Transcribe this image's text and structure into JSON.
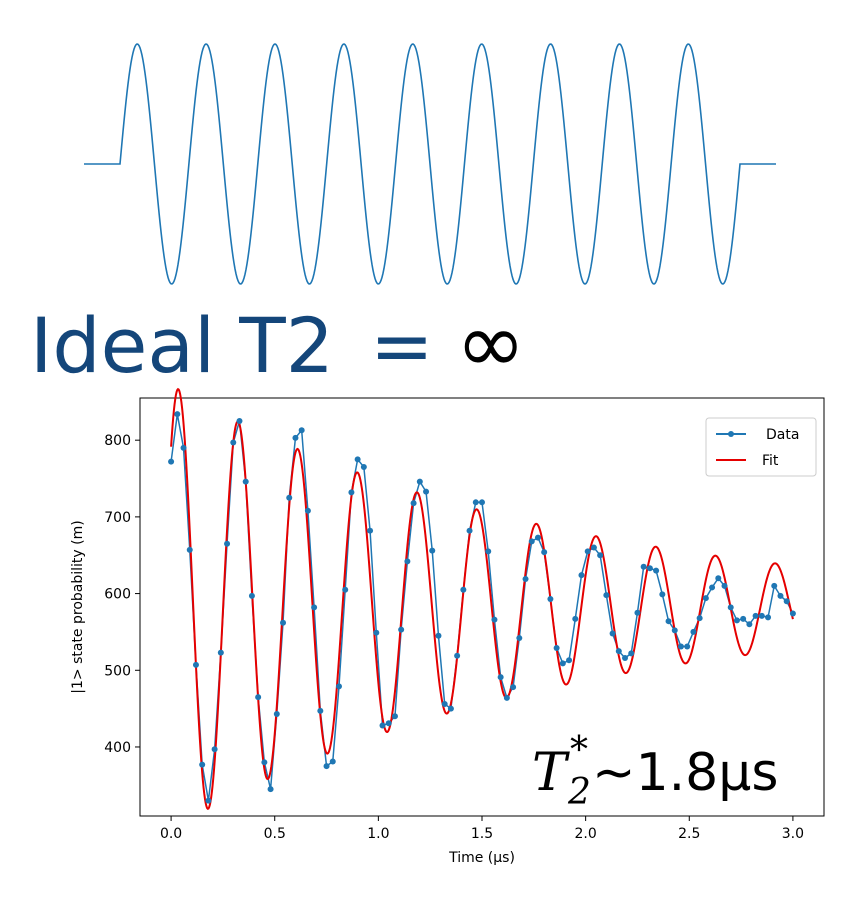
{
  "headline": {
    "ideal_text": "Ideal T2",
    "equals": "=",
    "infinity": "∞"
  },
  "ideal_wave": {
    "cycles": 9,
    "color": "#1f77b4"
  },
  "annotation": {
    "symbol": "T",
    "subscript": "2",
    "superscript": "*",
    "value": "~1.8μs"
  },
  "chart_data": {
    "type": "scatter",
    "xlabel": "Time (μs)",
    "ylabel": "|1> state probability (m)",
    "xlim": [
      -0.15,
      3.15
    ],
    "ylim": [
      310,
      855
    ],
    "xticks": [
      "0.0",
      "0.5",
      "1.0",
      "1.5",
      "2.0",
      "2.5",
      "3.0"
    ],
    "yticks": [
      "400",
      "500",
      "600",
      "700",
      "800"
    ],
    "legend_position": "top-right",
    "grid": false,
    "series": [
      {
        "name": "Data",
        "color": "#1f77b4",
        "style": "line+markers",
        "x": [
          0.0,
          0.03,
          0.06,
          0.09,
          0.12,
          0.15,
          0.18,
          0.21,
          0.24,
          0.27,
          0.3,
          0.33,
          0.36,
          0.39,
          0.42,
          0.45,
          0.48,
          0.51,
          0.54,
          0.57,
          0.6,
          0.63,
          0.66,
          0.69,
          0.72,
          0.75,
          0.78,
          0.81,
          0.84,
          0.87,
          0.9,
          0.93,
          0.96,
          0.99,
          1.02,
          1.05,
          1.08,
          1.11,
          1.14,
          1.17,
          1.2,
          1.23,
          1.26,
          1.29,
          1.32,
          1.35,
          1.38,
          1.41,
          1.44,
          1.47,
          1.5,
          1.53,
          1.56,
          1.59,
          1.62,
          1.65,
          1.68,
          1.71,
          1.74,
          1.77,
          1.8,
          1.83,
          1.86,
          1.89,
          1.92,
          1.95,
          1.98,
          2.01,
          2.04,
          2.07,
          2.1,
          2.13,
          2.16,
          2.19,
          2.22,
          2.25,
          2.28,
          2.31,
          2.34,
          2.37,
          2.4,
          2.43,
          2.46,
          2.49,
          2.52,
          2.55,
          2.58,
          2.61,
          2.64,
          2.67,
          2.7,
          2.73,
          2.76,
          2.79,
          2.82,
          2.85,
          2.88,
          2.91,
          2.94,
          2.97,
          3.0
        ],
        "y": [
          772,
          834,
          790,
          657,
          507,
          377,
          330,
          397,
          523,
          665,
          797,
          825,
          746,
          597,
          465,
          380,
          345,
          443,
          562,
          725,
          803,
          813,
          708,
          582,
          447,
          375,
          381,
          479,
          605,
          732,
          775,
          765,
          682,
          549,
          428,
          431,
          440,
          553,
          642,
          718,
          746,
          733,
          656,
          545,
          456,
          450,
          519,
          605,
          682,
          719,
          719,
          655,
          566,
          491,
          464,
          478,
          542,
          619,
          668,
          673,
          654,
          593,
          529,
          509,
          513,
          567,
          624,
          655,
          660,
          650,
          598,
          548,
          525,
          516,
          522,
          575,
          635,
          633,
          630,
          599,
          564,
          552,
          531,
          531,
          550,
          568,
          594,
          608,
          620,
          610,
          582,
          565,
          567,
          560,
          571,
          571,
          569,
          610,
          597,
          590,
          574
        ]
      },
      {
        "name": "Fit",
        "color": "#e50000",
        "style": "line",
        "model": {
          "baseline": 582,
          "amplitude": 290,
          "period": 0.288,
          "t2_us": 1.8,
          "start": 0.0,
          "end": 3.0
        }
      }
    ]
  }
}
